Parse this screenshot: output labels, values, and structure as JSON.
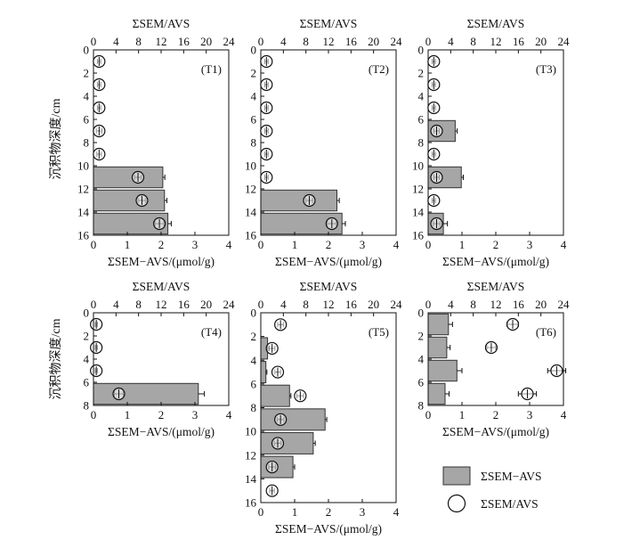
{
  "chart_data": [
    {
      "id": "T1",
      "type": "bar",
      "label": "(T1)",
      "x_bottom_label": "ΣSEM−AVS/(μmol/g)",
      "x_top_label": "ΣSEM/AVS",
      "y_label": "沉积物深度/cm",
      "xlim_bottom": [
        0,
        4
      ],
      "xlim_top": [
        0,
        24
      ],
      "ylim": [
        0,
        16
      ],
      "x_ticks_bottom": [
        "0",
        "1",
        "2",
        "3",
        "4"
      ],
      "x_ticks_top": [
        "0",
        "4",
        "8",
        "12",
        "16",
        "20",
        "24"
      ],
      "y_ticks": [
        "0",
        "2",
        "4",
        "6",
        "8",
        "10",
        "12",
        "14",
        "16"
      ],
      "bars": [
        {
          "depth": 11,
          "value": 2.05,
          "error": 0.06
        },
        {
          "depth": 13,
          "value": 2.1,
          "error": 0.07
        },
        {
          "depth": 15,
          "value": 2.2,
          "error": 0.1
        }
      ],
      "ratio_points": [
        {
          "depth": 1,
          "value": 1.0,
          "error": 0.3
        },
        {
          "depth": 3,
          "value": 1.0,
          "error": 0.3
        },
        {
          "depth": 5,
          "value": 1.0,
          "error": 0.3
        },
        {
          "depth": 7,
          "value": 1.0,
          "error": 0.5
        },
        {
          "depth": 9,
          "value": 1.0,
          "error": 0.4
        },
        {
          "depth": 11,
          "value": 7.9,
          "error": 0.6
        },
        {
          "depth": 13,
          "value": 8.6,
          "error": 0.7
        },
        {
          "depth": 15,
          "value": 11.7,
          "error": 0.8
        }
      ]
    },
    {
      "id": "T2",
      "type": "bar",
      "label": "(T2)",
      "x_bottom_label": "ΣSEM−AVS/(μmol/g)",
      "x_top_label": "ΣSEM/AVS",
      "y_label": "",
      "xlim_bottom": [
        0,
        4
      ],
      "xlim_top": [
        0,
        24
      ],
      "ylim": [
        0,
        16
      ],
      "x_ticks_bottom": [
        "0",
        "1",
        "2",
        "3",
        "4"
      ],
      "x_ticks_top": [
        "0",
        "4",
        "8",
        "12",
        "16",
        "20",
        "24"
      ],
      "y_ticks": [
        "0",
        "2",
        "4",
        "6",
        "8",
        "10",
        "12",
        "14",
        "16"
      ],
      "bars": [
        {
          "depth": 13,
          "value": 2.25,
          "error": 0.07
        },
        {
          "depth": 15,
          "value": 2.4,
          "error": 0.1
        }
      ],
      "ratio_points": [
        {
          "depth": 1,
          "value": 1.0,
          "error": 0.3
        },
        {
          "depth": 3,
          "value": 1.0,
          "error": 0.3
        },
        {
          "depth": 5,
          "value": 1.0,
          "error": 0.3
        },
        {
          "depth": 7,
          "value": 1.0,
          "error": 0.3
        },
        {
          "depth": 9,
          "value": 1.0,
          "error": 0.3
        },
        {
          "depth": 11,
          "value": 1.0,
          "error": 0.3
        },
        {
          "depth": 13,
          "value": 8.6,
          "error": 0.6
        },
        {
          "depth": 15,
          "value": 12.6,
          "error": 0.8
        }
      ]
    },
    {
      "id": "T3",
      "type": "bar",
      "label": "(T3)",
      "x_bottom_label": "ΣSEM−AVS/(μmol/g)",
      "x_top_label": "ΣSEM/AVS",
      "y_label": "",
      "xlim_bottom": [
        0,
        4
      ],
      "xlim_top": [
        0,
        24
      ],
      "ylim": [
        0,
        16
      ],
      "x_ticks_bottom": [
        "0",
        "1",
        "2",
        "3",
        "4"
      ],
      "x_ticks_top": [
        "0",
        "4",
        "8",
        "12",
        "16",
        "20",
        "24"
      ],
      "y_ticks": [
        "0",
        "2",
        "4",
        "6",
        "8",
        "10",
        "12",
        "14",
        "16"
      ],
      "bars": [
        {
          "depth": 7,
          "value": 0.8,
          "error": 0.06
        },
        {
          "depth": 11,
          "value": 0.98,
          "error": 0.06
        },
        {
          "depth": 15,
          "value": 0.45,
          "error": 0.12
        }
      ],
      "ratio_points": [
        {
          "depth": 1,
          "value": 1.0,
          "error": 0.3
        },
        {
          "depth": 3,
          "value": 1.0,
          "error": 0.3
        },
        {
          "depth": 5,
          "value": 1.0,
          "error": 0.3
        },
        {
          "depth": 7,
          "value": 1.5,
          "error": 0.5
        },
        {
          "depth": 9,
          "value": 1.0,
          "error": 0.3
        },
        {
          "depth": 11,
          "value": 1.5,
          "error": 0.5
        },
        {
          "depth": 13,
          "value": 1.0,
          "error": 0.3
        },
        {
          "depth": 15,
          "value": 1.5,
          "error": 0.6
        }
      ]
    },
    {
      "id": "T4",
      "type": "bar",
      "label": "(T4)",
      "x_bottom_label": "ΣSEM−AVS/(μmol/g)",
      "x_top_label": "ΣSEM/AVS",
      "y_label": "沉积物深度/cm",
      "xlim_bottom": [
        0,
        4
      ],
      "xlim_top": [
        0,
        24
      ],
      "ylim": [
        0,
        8
      ],
      "x_ticks_bottom": [
        "0",
        "1",
        "2",
        "3",
        "4"
      ],
      "x_ticks_top": [
        "0",
        "4",
        "8",
        "12",
        "16",
        "20",
        "24"
      ],
      "y_ticks": [
        "0",
        "2",
        "4",
        "6",
        "8"
      ],
      "bars": [
        {
          "depth": 7,
          "value": 3.1,
          "error": 0.18
        }
      ],
      "ratio_points": [
        {
          "depth": 1,
          "value": 0.5,
          "error": 0.2
        },
        {
          "depth": 3,
          "value": 0.5,
          "error": 0.2
        },
        {
          "depth": 5,
          "value": 0.5,
          "error": 0.2
        },
        {
          "depth": 7,
          "value": 4.5,
          "error": 0.8
        }
      ]
    },
    {
      "id": "T5",
      "type": "bar",
      "label": "(T5)",
      "x_bottom_label": "ΣSEM−AVS/(μmol/g)",
      "x_top_label": "ΣSEM/AVS",
      "y_label": "",
      "xlim_bottom": [
        0,
        4
      ],
      "xlim_top": [
        0,
        24
      ],
      "ylim": [
        0,
        16
      ],
      "x_ticks_bottom": [
        "0",
        "1",
        "2",
        "3",
        "4"
      ],
      "x_ticks_top": [
        "0",
        "4",
        "8",
        "12",
        "16",
        "20",
        "24"
      ],
      "y_ticks": [
        "0",
        "2",
        "4",
        "6",
        "8",
        "10",
        "12",
        "14",
        "16"
      ],
      "bars": [
        {
          "depth": 3,
          "value": 0.2,
          "error": 0.04
        },
        {
          "depth": 5,
          "value": 0.15,
          "error": 0.03
        },
        {
          "depth": 7,
          "value": 0.85,
          "error": 0.04
        },
        {
          "depth": 9,
          "value": 1.9,
          "error": 0.05
        },
        {
          "depth": 11,
          "value": 1.55,
          "error": 0.06
        },
        {
          "depth": 13,
          "value": 0.95,
          "error": 0.05
        }
      ],
      "ratio_points": [
        {
          "depth": 1,
          "value": 3.5,
          "error": 0.5
        },
        {
          "depth": 3,
          "value": 2.0,
          "error": 0.5
        },
        {
          "depth": 5,
          "value": 3.0,
          "error": 0.5
        },
        {
          "depth": 7,
          "value": 7.0,
          "error": 0.6
        },
        {
          "depth": 9,
          "value": 3.5,
          "error": 0.6
        },
        {
          "depth": 11,
          "value": 3.0,
          "error": 0.6
        },
        {
          "depth": 13,
          "value": 2.0,
          "error": 0.6
        },
        {
          "depth": 15,
          "value": 2.0,
          "error": 0.4
        }
      ]
    },
    {
      "id": "T6",
      "type": "bar",
      "label": "(T6)",
      "x_bottom_label": "ΣSEM−AVS/(μmol/g)",
      "x_top_label": "ΣSEM/AVS",
      "y_label": "",
      "xlim_bottom": [
        0,
        4
      ],
      "xlim_top": [
        0,
        24
      ],
      "ylim": [
        0,
        8
      ],
      "x_ticks_bottom": [
        "0",
        "1",
        "2",
        "3",
        "4"
      ],
      "x_ticks_top": [
        "0",
        "4",
        "8",
        "12",
        "16",
        "20",
        "24"
      ],
      "y_ticks": [
        "0",
        "2",
        "4",
        "6",
        "8"
      ],
      "bars": [
        {
          "depth": 1,
          "value": 0.6,
          "error": 0.12
        },
        {
          "depth": 3,
          "value": 0.55,
          "error": 0.1
        },
        {
          "depth": 5,
          "value": 0.85,
          "error": 0.15
        },
        {
          "depth": 7,
          "value": 0.5,
          "error": 0.12
        }
      ],
      "ratio_points": [
        {
          "depth": 1,
          "value": 15.0,
          "error": 1.0
        },
        {
          "depth": 3,
          "value": 11.2,
          "error": 0.8
        },
        {
          "depth": 5,
          "value": 22.8,
          "error": 1.6
        },
        {
          "depth": 7,
          "value": 17.6,
          "error": 1.6
        }
      ]
    }
  ],
  "legend": {
    "bar_label": "ΣSEM−AVS",
    "marker_label": "ΣSEM/AVS",
    "bar_color": "#a6a6a6"
  }
}
